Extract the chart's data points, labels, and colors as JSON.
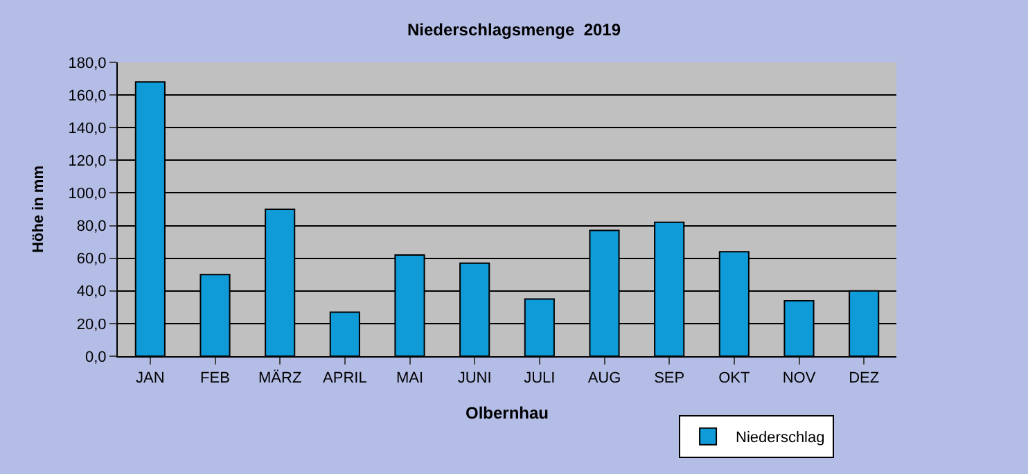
{
  "chart_data": {
    "type": "bar",
    "title": "Niederschlagsmenge  2019",
    "xlabel": "Olbernhau",
    "ylabel": "Höhe in mm",
    "categories": [
      "JAN",
      "FEB",
      "MÄRZ",
      "APRIL",
      "MAI",
      "JUNI",
      "JULI",
      "AUG",
      "SEP",
      "OKT",
      "NOV",
      "DEZ"
    ],
    "series": [
      {
        "name": "Niederschlag",
        "color": "#0f9ad8",
        "values": [
          168,
          50,
          90,
          27,
          62,
          57,
          35,
          77,
          82,
          64,
          34,
          40
        ]
      }
    ],
    "ylim": [
      0,
      180
    ],
    "yticks": [
      {
        "value": 0,
        "label": "0,0"
      },
      {
        "value": 20,
        "label": "20,0"
      },
      {
        "value": 40,
        "label": "40,0"
      },
      {
        "value": 60,
        "label": "60,0"
      },
      {
        "value": 80,
        "label": "80,0"
      },
      {
        "value": 100,
        "label": "100,0"
      },
      {
        "value": 120,
        "label": "120,0"
      },
      {
        "value": 140,
        "label": "140,0"
      },
      {
        "value": 160,
        "label": "160,0"
      },
      {
        "value": 180,
        "label": "180,0"
      }
    ],
    "grid": "y",
    "legend": "bottom right"
  }
}
